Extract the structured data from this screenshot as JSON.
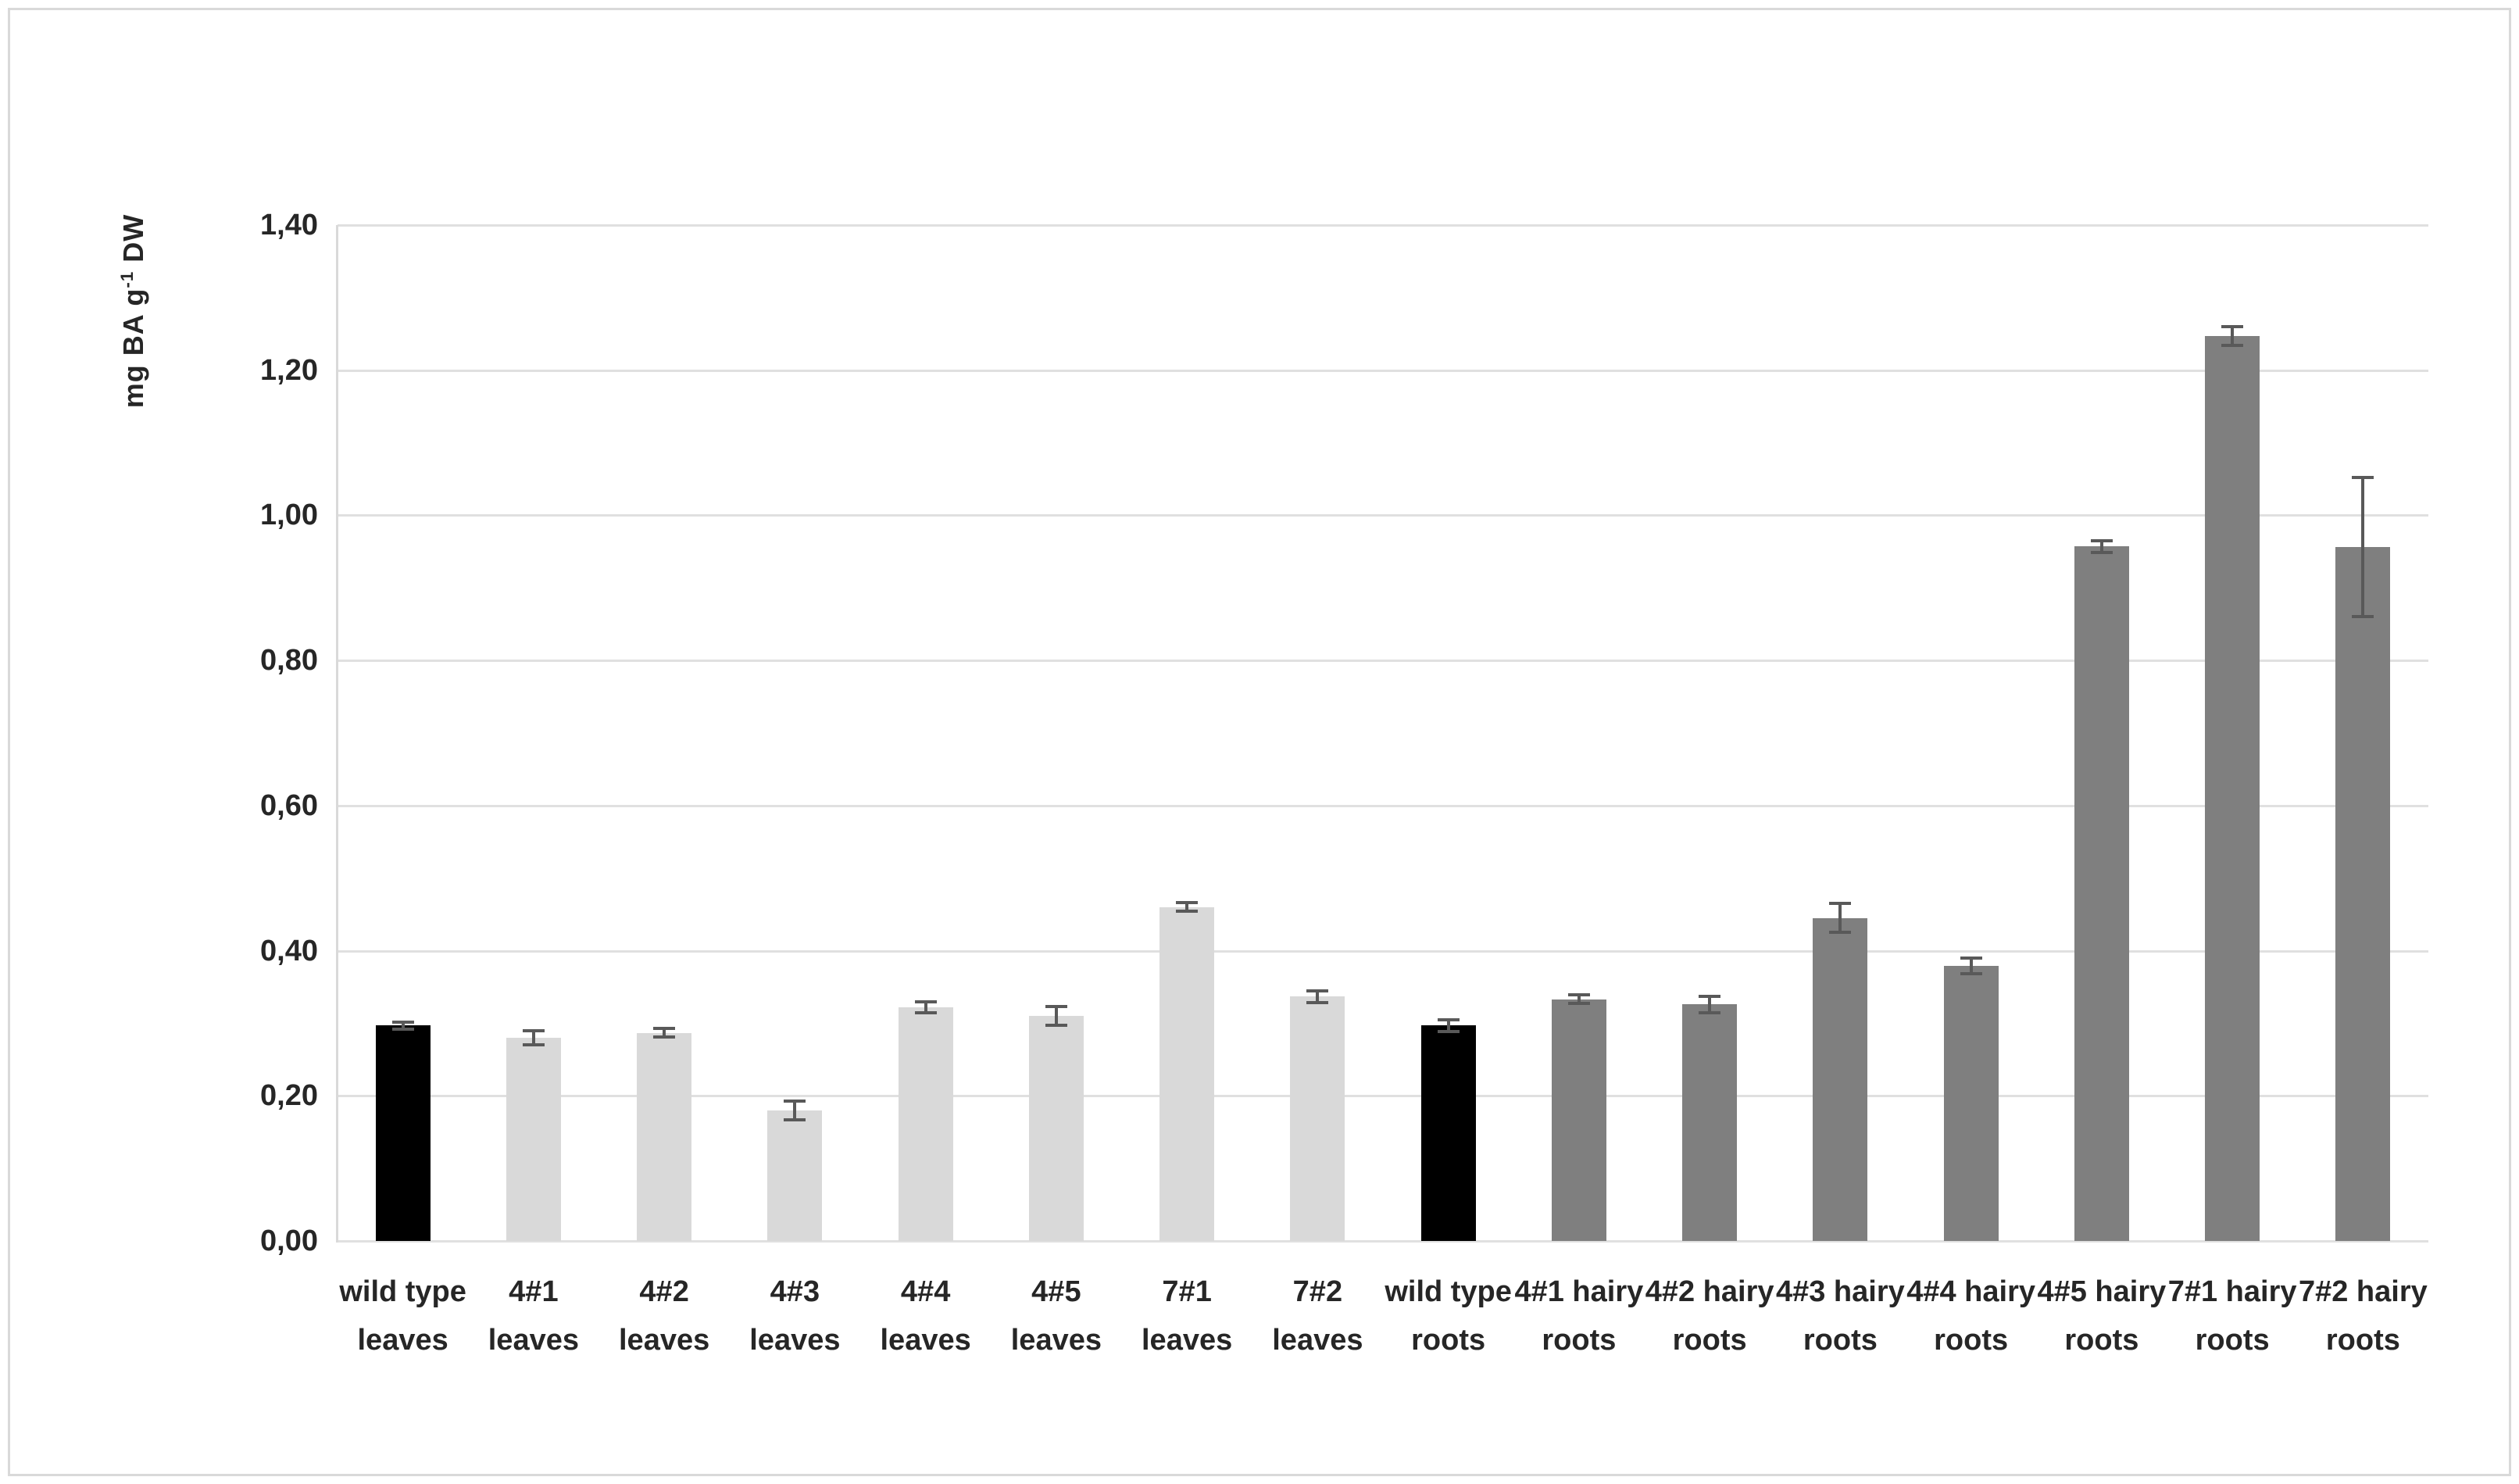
{
  "figure": {
    "background_color": "#ffffff",
    "border_color": "#d9d9d9"
  },
  "chart_data": {
    "type": "bar",
    "title": "",
    "xlabel": "",
    "ylabel": "mg BA g⁻¹ DW",
    "ylabel_parts": [
      "mg BA g",
      "-1",
      " DW"
    ],
    "ylim": [
      0.0,
      1.4
    ],
    "ytick_step": 0.2,
    "ytick_labels": [
      "0,00",
      "0,20",
      "0,40",
      "0,60",
      "0,80",
      "1,00",
      "1,20",
      "1,40"
    ],
    "grid": true,
    "legend": false,
    "categories": [
      "wild type leaves",
      "4#1 leaves",
      "4#2 leaves",
      "4#3 leaves",
      "4#4 leaves",
      "4#5 leaves",
      "7#1 leaves",
      "7#2 leaves",
      "wild type roots",
      "4#1 hairy roots",
      "4#2 hairy roots",
      "4#3 hairy roots",
      "4#4 hairy roots",
      "4#5 hairy roots",
      "7#1 hairy roots",
      "7#2 hairy roots"
    ],
    "category_label_lines": [
      [
        "wild type",
        "leaves"
      ],
      [
        "4#1",
        "leaves"
      ],
      [
        "4#2",
        "leaves"
      ],
      [
        "4#3",
        "leaves"
      ],
      [
        "4#4",
        "leaves"
      ],
      [
        "4#5",
        "leaves"
      ],
      [
        "7#1",
        "leaves"
      ],
      [
        "7#2",
        "leaves"
      ],
      [
        "wild type",
        "roots"
      ],
      [
        "4#1 hairy",
        "roots"
      ],
      [
        "4#2 hairy",
        "roots"
      ],
      [
        "4#3 hairy",
        "roots"
      ],
      [
        "4#4 hairy",
        "roots"
      ],
      [
        "4#5 hairy",
        "roots"
      ],
      [
        "7#1 hairy",
        "roots"
      ],
      [
        "7#2 hairy",
        "roots"
      ]
    ],
    "values": [
      0.297,
      0.28,
      0.287,
      0.18,
      0.322,
      0.31,
      0.46,
      0.337,
      0.297,
      0.333,
      0.326,
      0.445,
      0.379,
      0.957,
      1.247,
      0.956
    ],
    "errors": [
      0.005,
      0.01,
      0.006,
      0.013,
      0.008,
      0.013,
      0.006,
      0.008,
      0.008,
      0.006,
      0.011,
      0.02,
      0.011,
      0.008,
      0.013,
      0.096
    ],
    "bar_colors": [
      "#000000",
      "#d9d9d9",
      "#d9d9d9",
      "#d9d9d9",
      "#d9d9d9",
      "#d9d9d9",
      "#d9d9d9",
      "#d9d9d9",
      "#000000",
      "#7f7f7f",
      "#7f7f7f",
      "#7f7f7f",
      "#7f7f7f",
      "#7f7f7f",
      "#7f7f7f",
      "#7f7f7f"
    ],
    "colors": {
      "wild_type_bar": "#000000",
      "leaves_bar": "#d9d9d9",
      "hairy_roots_bar": "#7f7f7f",
      "error_bar": "#595959",
      "gridline": "#e0e0e0",
      "axis_line": "#d9d9d9",
      "tick_text": "#262626"
    }
  }
}
